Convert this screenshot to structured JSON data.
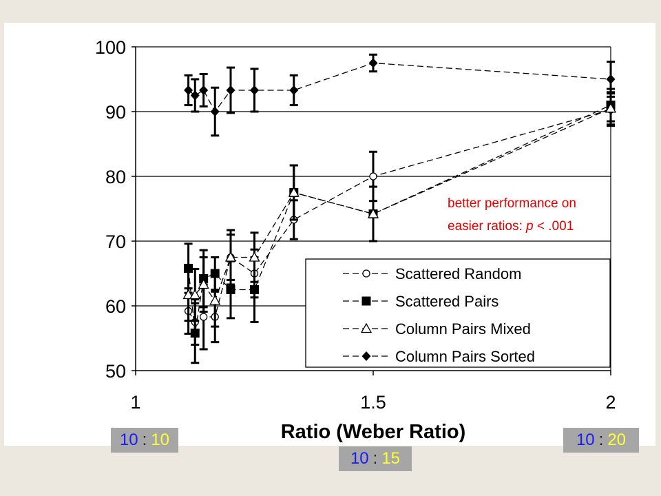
{
  "colors": {
    "annotation": "#e60000",
    "ratio_left": "#1a1aff",
    "ratio_right": "#ffff33",
    "ratio_bg": "#a6a6a6",
    "slide_bg": "#ece8df"
  },
  "annotation": {
    "line1": "better performance on",
    "line2_prefix": "easier ratios: ",
    "line2_p": "p",
    "line2_suffix": " < .001"
  },
  "ratio_boxes": [
    {
      "left": "10",
      "sep": ":",
      "right": "10"
    },
    {
      "left": "10",
      "sep": ":",
      "right": "15"
    },
    {
      "left": "10",
      "sep": ":",
      "right": "20"
    }
  ],
  "chart_data": {
    "type": "line",
    "title": "",
    "xlabel": "Ratio (Weber Ratio)",
    "ylabel": "",
    "xlim": [
      1,
      2
    ],
    "ylim": [
      50,
      100
    ],
    "x_ticks": [
      "1",
      "1.5",
      "2"
    ],
    "x_tick_values": [
      1,
      1.5,
      2
    ],
    "y_ticks": [
      "50",
      "60",
      "70",
      "80",
      "90",
      "100"
    ],
    "y_tick_values": [
      50,
      60,
      70,
      80,
      90,
      100
    ],
    "grid": "horizontal",
    "legend_position": "bottom-right",
    "series": [
      {
        "name": "Scattered Random",
        "marker": "circle-open",
        "x": [
          1.111,
          1.125,
          1.143,
          1.167,
          1.2,
          1.25,
          1.333,
          1.5,
          2
        ],
        "values": [
          59.2,
          57.5,
          58.3,
          58.3,
          67.5,
          65.0,
          73.3,
          80.0,
          90.3
        ],
        "error": [
          3.5,
          3.5,
          5.0,
          3.9,
          3.5,
          3.7,
          3.0,
          3.8,
          2.5
        ]
      },
      {
        "name": "Scattered Pairs",
        "marker": "square-filled",
        "x": [
          1.111,
          1.125,
          1.143,
          1.167,
          1.2,
          1.25,
          1.333,
          1.5,
          2
        ],
        "values": [
          65.8,
          55.8,
          64.2,
          65.0,
          62.5,
          62.5,
          77.5,
          74.2,
          91.0
        ],
        "error": [
          3.8,
          4.6,
          4.4,
          2.5,
          4.4,
          5.0,
          4.2,
          4.2,
          2.5
        ]
      },
      {
        "name": "Column Pairs Mixed",
        "marker": "triangle-open",
        "x": [
          1.111,
          1.125,
          1.143,
          1.167,
          1.2,
          1.25,
          1.333,
          1.5,
          2
        ],
        "values": [
          61.7,
          61.7,
          63.3,
          60.8,
          67.5,
          67.5,
          77.5,
          74.2,
          90.5
        ],
        "error": [
          4.0,
          4.0,
          4.2,
          4.0,
          4.2,
          3.8,
          4.2,
          4.2,
          2.5
        ]
      },
      {
        "name": "Column Pairs Sorted",
        "marker": "diamond-filled",
        "x": [
          1.111,
          1.125,
          1.143,
          1.167,
          1.2,
          1.25,
          1.333,
          1.5,
          2
        ],
        "values": [
          93.3,
          92.5,
          93.3,
          90.0,
          93.3,
          93.3,
          93.3,
          97.5,
          95.0
        ],
        "error": [
          2.3,
          2.5,
          2.5,
          3.7,
          3.5,
          3.3,
          2.3,
          1.3,
          2.7
        ]
      }
    ]
  }
}
